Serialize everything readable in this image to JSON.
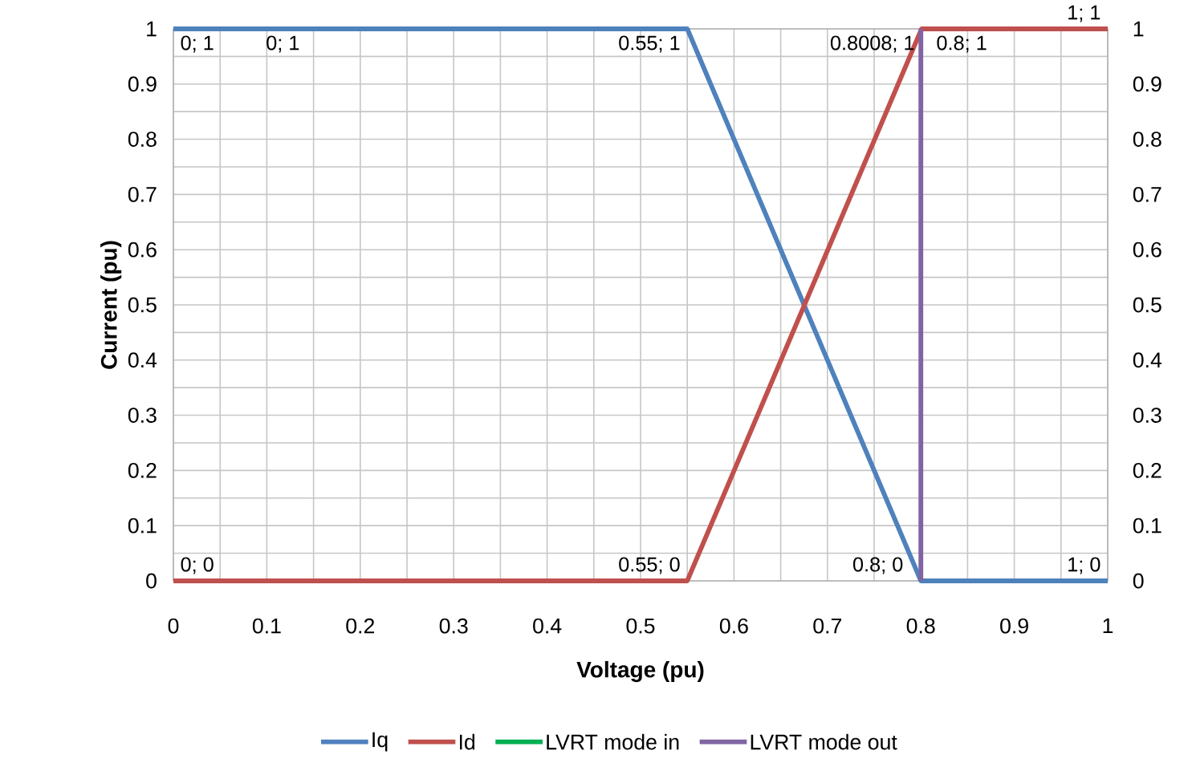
{
  "chart_data": {
    "type": "line",
    "xlabel": "Voltage (pu)",
    "ylabel": "Current (pu)",
    "xlim": [
      0,
      1
    ],
    "ylim": [
      0,
      1
    ],
    "y2lim": [
      0,
      1
    ],
    "xticks": [
      0,
      0.1,
      0.2,
      0.3,
      0.4,
      0.5,
      0.6,
      0.7,
      0.8,
      0.9,
      1
    ],
    "yticks": [
      0,
      0.1,
      0.2,
      0.3,
      0.4,
      0.5,
      0.6,
      0.7,
      0.8,
      0.9,
      1
    ],
    "y2ticks": [
      0,
      0.1,
      0.2,
      0.3,
      0.4,
      0.5,
      0.6,
      0.7,
      0.8,
      0.9,
      1
    ],
    "series": [
      {
        "name": "Iq",
        "color": "#4f81bd",
        "x": [
          0,
          0.55,
          0.8,
          1
        ],
        "values": [
          1,
          1,
          0,
          0
        ],
        "value_labels": [
          "0; 1",
          "0.55; 1",
          "0.8; 0",
          "1; 0"
        ]
      },
      {
        "name": "Id",
        "color": "#c0504d",
        "x": [
          0,
          0.55,
          0.8008,
          1
        ],
        "values": [
          0,
          0,
          1,
          1
        ],
        "value_labels": [
          "0; 0",
          "0.55; 0",
          "0.8008; 1",
          "1; 1"
        ]
      },
      {
        "name": "LVRT mode in",
        "color": "#00b050",
        "axis": "y2"
      },
      {
        "name": "LVRT mode out",
        "color": "#8064a2",
        "axis": "y2",
        "x": [
          0.8,
          0.8
        ],
        "values": [
          0,
          1
        ],
        "value_labels": [
          null,
          "0.8; 1"
        ]
      }
    ],
    "annotations": [
      "0; 1"
    ],
    "grid": true,
    "legend": "bottom",
    "marker": "none",
    "line_style": "solid"
  }
}
